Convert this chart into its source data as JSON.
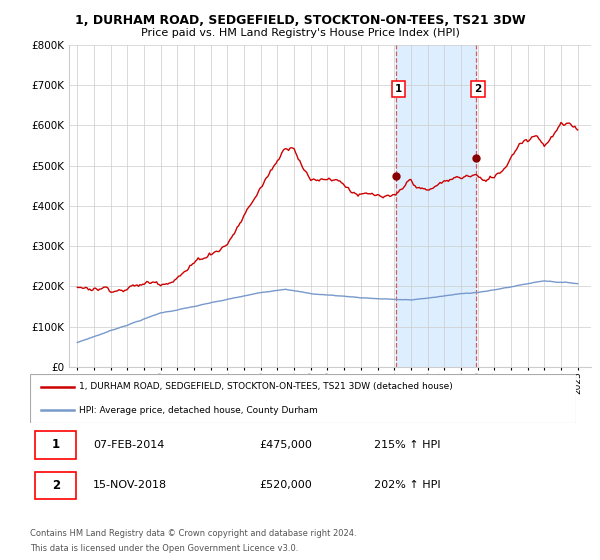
{
  "title": "1, DURHAM ROAD, SEDGEFIELD, STOCKTON-ON-TEES, TS21 3DW",
  "subtitle": "Price paid vs. HM Land Registry's House Price Index (HPI)",
  "ylim": [
    0,
    800000
  ],
  "yticks": [
    0,
    100000,
    200000,
    300000,
    400000,
    500000,
    600000,
    700000,
    800000
  ],
  "ytick_labels": [
    "£0",
    "£100K",
    "£200K",
    "£300K",
    "£400K",
    "£500K",
    "£600K",
    "£700K",
    "£800K"
  ],
  "hpi_color": "#7799cc",
  "price_color": "#cc0000",
  "shaded_color": "#ddeeff",
  "sale1": {
    "year": 2014.1,
    "price": 475000,
    "label": "1",
    "date": "07-FEB-2014",
    "hpi_pct": "215%"
  },
  "sale2": {
    "year": 2018.88,
    "price": 520000,
    "label": "2",
    "date": "15-NOV-2018",
    "hpi_pct": "202%"
  },
  "legend_line1": "1, DURHAM ROAD, SEDGEFIELD, STOCKTON-ON-TEES, TS21 3DW (detached house)",
  "legend_line2": "HPI: Average price, detached house, County Durham",
  "footer1": "Contains HM Land Registry data © Crown copyright and database right 2024.",
  "footer2": "This data is licensed under the Open Government Licence v3.0.",
  "table_row1": [
    "1",
    "07-FEB-2014",
    "£475,000",
    "215% ↑ HPI"
  ],
  "table_row2": [
    "2",
    "15-NOV-2018",
    "£520,000",
    "202% ↑ HPI"
  ],
  "background_color": "#ffffff",
  "grid_color": "#cccccc",
  "xlim_left": 1994.5,
  "xlim_right": 2025.8
}
